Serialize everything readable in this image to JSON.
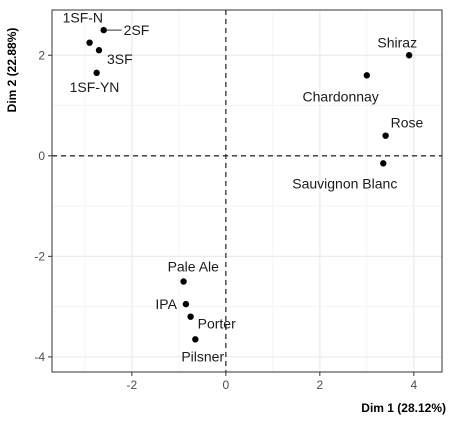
{
  "chart_data": {
    "type": "scatter",
    "xlabel": "Dim 1 (28.12%)",
    "ylabel": "Dim 2 (22.88%)",
    "xlim": [
      -3.7,
      4.6
    ],
    "ylim": [
      -4.3,
      2.9
    ],
    "xticks": [
      -2,
      0,
      2,
      4
    ],
    "yticks": [
      -4,
      -2,
      0,
      2
    ],
    "grid": true,
    "reference_lines": {
      "x": 0,
      "y": 0,
      "style": "dashed"
    },
    "colors": {
      "point": "#000000",
      "grid": "#ebebeb",
      "panel_border": "#333333",
      "reference": "#333333"
    },
    "points": [
      {
        "label": "1SF-N",
        "x": -2.9,
        "y": 2.25
      },
      {
        "label": "2SF",
        "x": -2.6,
        "y": 2.5
      },
      {
        "label": "3SF",
        "x": -2.7,
        "y": 2.1
      },
      {
        "label": "1SF-YN",
        "x": -2.75,
        "y": 1.65
      },
      {
        "label": "Shiraz",
        "x": 3.9,
        "y": 2.0
      },
      {
        "label": "Chardonnay",
        "x": 3.0,
        "y": 1.6
      },
      {
        "label": "Rose",
        "x": 3.4,
        "y": 0.4
      },
      {
        "label": "Sauvignon Blanc",
        "x": 3.35,
        "y": -0.15
      },
      {
        "label": "Pale Ale",
        "x": -0.9,
        "y": -2.5
      },
      {
        "label": "IPA",
        "x": -0.85,
        "y": -2.95
      },
      {
        "label": "Porter",
        "x": -0.75,
        "y": -3.2
      },
      {
        "label": "Pilsner",
        "x": -0.65,
        "y": -3.65
      }
    ]
  }
}
